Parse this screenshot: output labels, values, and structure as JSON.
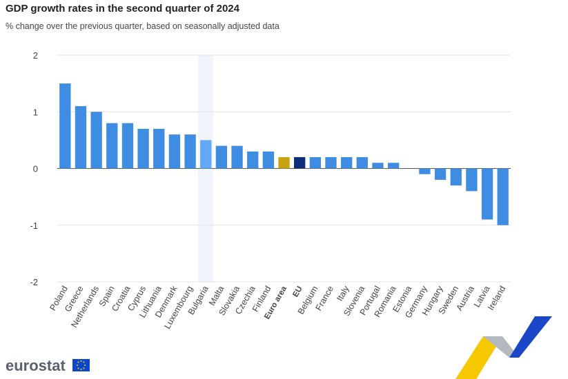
{
  "chart_data": {
    "type": "bar",
    "title": "GDP growth rates in the second quarter of 2024",
    "subtitle": "% change over the previous quarter, based on seasonally adjusted data",
    "categories": [
      "Poland",
      "Greece",
      "Netherlands",
      "Spain",
      "Croatia",
      "Cyprus",
      "Lithuania",
      "Denmark",
      "Luxembourg",
      "Bulgaria",
      "Malta",
      "Slovakia",
      "Czechia",
      "Finland",
      "Euro area",
      "EU",
      "Belgium",
      "France",
      "Italy",
      "Slovenia",
      "Portugal",
      "Romania",
      "Estonia",
      "Germany",
      "Hungary",
      "Sweden",
      "Austria",
      "Latvia",
      "Ireland"
    ],
    "values": [
      1.5,
      1.1,
      1.0,
      0.8,
      0.8,
      0.7,
      0.7,
      0.6,
      0.6,
      0.5,
      0.4,
      0.4,
      0.3,
      0.3,
      0.2,
      0.2,
      0.2,
      0.2,
      0.2,
      0.2,
      0.1,
      0.1,
      0,
      -0.1,
      -0.2,
      -0.3,
      -0.4,
      -0.9,
      -1.0
    ],
    "colors": [
      "#3f8de3",
      "#3f8de3",
      "#3f8de3",
      "#3f8de3",
      "#3f8de3",
      "#3f8de3",
      "#3f8de3",
      "#3f8de3",
      "#3f8de3",
      "#62a8f5",
      "#3f8de3",
      "#3f8de3",
      "#3f8de3",
      "#3f8de3",
      "#c9a20f",
      "#0e2e7a",
      "#3f8de3",
      "#3f8de3",
      "#3f8de3",
      "#3f8de3",
      "#3f8de3",
      "#3f8de3",
      "#3f8de3",
      "#3f8de3",
      "#3f8de3",
      "#3f8de3",
      "#3f8de3",
      "#3f8de3",
      "#3f8de3"
    ],
    "ylim": [
      -2,
      2
    ],
    "yticks": [
      -2,
      -1,
      0,
      1,
      2
    ],
    "grid": true,
    "logo": "eurostat"
  }
}
